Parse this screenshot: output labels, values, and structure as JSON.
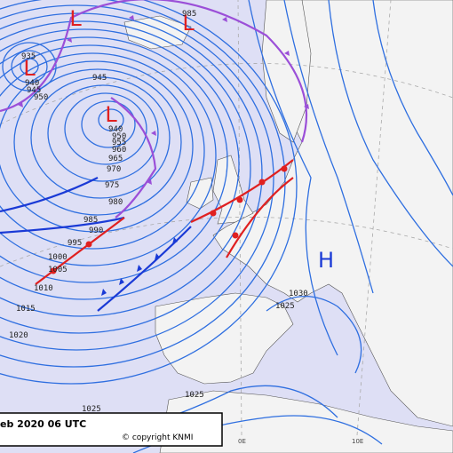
{
  "pressure_centers": [
    "L",
    "L",
    "L",
    "L",
    "H"
  ],
  "isobar_labels": [
    935,
    940,
    945,
    950,
    945,
    940,
    950,
    955,
    960,
    965,
    970,
    975,
    980,
    985,
    990,
    995,
    1000,
    1005,
    1010,
    1015,
    1020,
    1025,
    1025,
    1030,
    1025,
    985
  ],
  "meridian_labels": [
    "0E",
    "10E"
  ],
  "footer": {
    "date": "eb 2020 06 UTC",
    "copyright": "© copyright KNMI"
  }
}
